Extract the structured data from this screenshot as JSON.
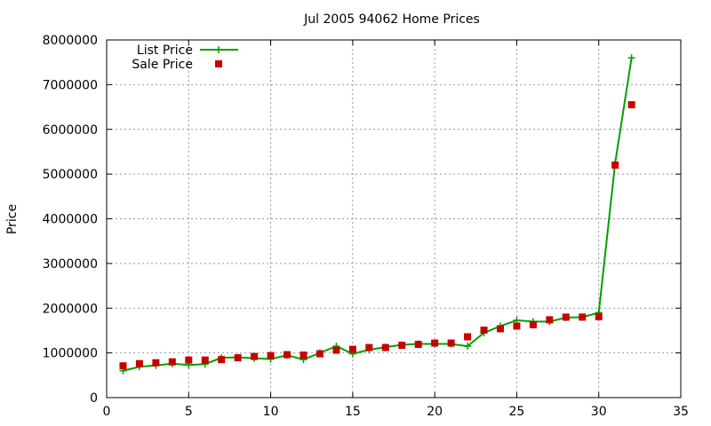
{
  "chart_data": {
    "type": "line",
    "title": "Jul 2005 94062 Home Prices",
    "xlabel": "",
    "ylabel": "Price",
    "xlim": [
      0,
      35
    ],
    "ylim": [
      0,
      8000000
    ],
    "xticks": [
      0,
      5,
      10,
      15,
      20,
      25,
      30,
      35
    ],
    "yticks": [
      0,
      1000000,
      2000000,
      3000000,
      4000000,
      5000000,
      6000000,
      7000000,
      8000000
    ],
    "grid": true,
    "legend_position": "top-left",
    "x": [
      1,
      2,
      3,
      4,
      5,
      6,
      7,
      8,
      9,
      10,
      11,
      12,
      13,
      14,
      15,
      16,
      17,
      18,
      19,
      20,
      21,
      22,
      23,
      24,
      25,
      26,
      27,
      28,
      29,
      30,
      31,
      32
    ],
    "series": [
      {
        "name": "List Price",
        "style": "line-plus",
        "color": "#00a000",
        "values": [
          600000,
          690000,
          720000,
          760000,
          730000,
          750000,
          890000,
          900000,
          880000,
          860000,
          950000,
          850000,
          1000000,
          1150000,
          980000,
          1070000,
          1130000,
          1180000,
          1200000,
          1200000,
          1200000,
          1150000,
          1450000,
          1600000,
          1730000,
          1700000,
          1700000,
          1790000,
          1800000,
          1900000,
          5250000,
          7600000
        ]
      },
      {
        "name": "Sale Price",
        "style": "points-square",
        "color": "#c80000",
        "values": [
          710000,
          760000,
          780000,
          800000,
          840000,
          840000,
          850000,
          890000,
          920000,
          940000,
          960000,
          950000,
          980000,
          1060000,
          1080000,
          1120000,
          1120000,
          1170000,
          1190000,
          1220000,
          1220000,
          1360000,
          1510000,
          1540000,
          1600000,
          1630000,
          1740000,
          1800000,
          1800000,
          1810000,
          5200000,
          6550000
        ]
      }
    ]
  }
}
